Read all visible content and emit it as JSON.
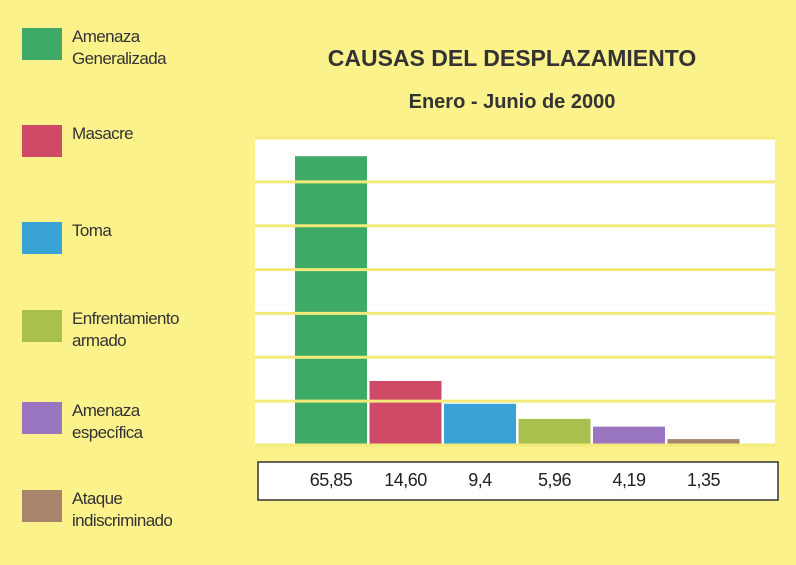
{
  "chart_data": {
    "type": "bar",
    "title": "CAUSAS DEL DESPLAZAMIENTO",
    "subtitle": "Enero - Junio de 2000",
    "categories": [
      "Amenaza Generalizada",
      "Masacre",
      "Toma",
      "Enfrentamiento armado",
      "Amenaza específica",
      "Ataque indiscriminado"
    ],
    "values": [
      65.85,
      14.6,
      9.4,
      5.96,
      4.19,
      1.35
    ],
    "value_labels": [
      "65,85",
      "14,60",
      "9,4",
      "5,96",
      "4,19",
      "1,35"
    ],
    "colors": [
      "#3daa68",
      "#cf4a66",
      "#3aa3d6",
      "#a9bf4e",
      "#9a76c0",
      "#a8846a"
    ],
    "ylim": [
      0,
      70
    ],
    "yticks": [
      0,
      10,
      20,
      30,
      40,
      50,
      60,
      70
    ],
    "grid": true
  }
}
